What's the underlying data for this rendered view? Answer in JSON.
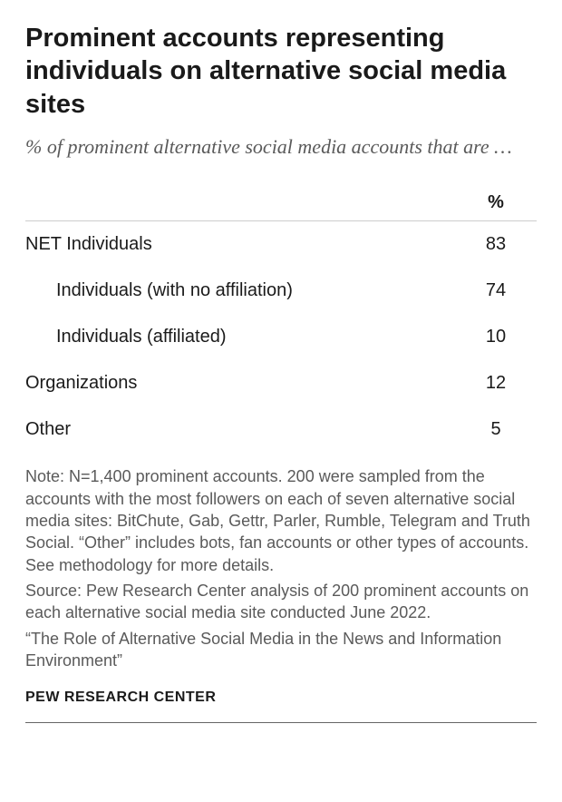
{
  "title": "Prominent accounts representing individuals on alternative social media sites",
  "subtitle": "% of prominent alternative social media accounts that are …",
  "table": {
    "type": "table",
    "header": "%",
    "rows": [
      {
        "label": "NET Individuals",
        "value": "83",
        "indent": false
      },
      {
        "label": "Individuals (with no affiliation)",
        "value": "74",
        "indent": true
      },
      {
        "label": "Individuals (affiliated)",
        "value": "10",
        "indent": true
      },
      {
        "label": "Organizations",
        "value": "12",
        "indent": false
      },
      {
        "label": "Other",
        "value": "5",
        "indent": false
      }
    ]
  },
  "note": "Note: N=1,400 prominent accounts. 200 were sampled from the accounts with the most followers on each of seven alternative social media sites: BitChute, Gab, Gettr, Parler, Rumble, Telegram and Truth Social. “Other” includes bots, fan accounts or other types of accounts. See methodology for more details.",
  "source": "Source: Pew Research Center analysis of 200 prominent accounts on each alternative social media site conducted June 2022.",
  "quote": "“The Role of Alternative Social Media in the News and Information Environment”",
  "attribution": "PEW RESEARCH CENTER",
  "style": {
    "title_fontsize": 29,
    "subtitle_fontsize": 22,
    "header_fontsize": 20,
    "row_fontsize": 20,
    "note_fontsize": 18,
    "attribution_fontsize": 16,
    "text_color": "#1a1a1a",
    "muted_color": "#5a5a5a",
    "border_color": "#cccccc",
    "rule_color": "#666666",
    "background_color": "#ffffff"
  }
}
